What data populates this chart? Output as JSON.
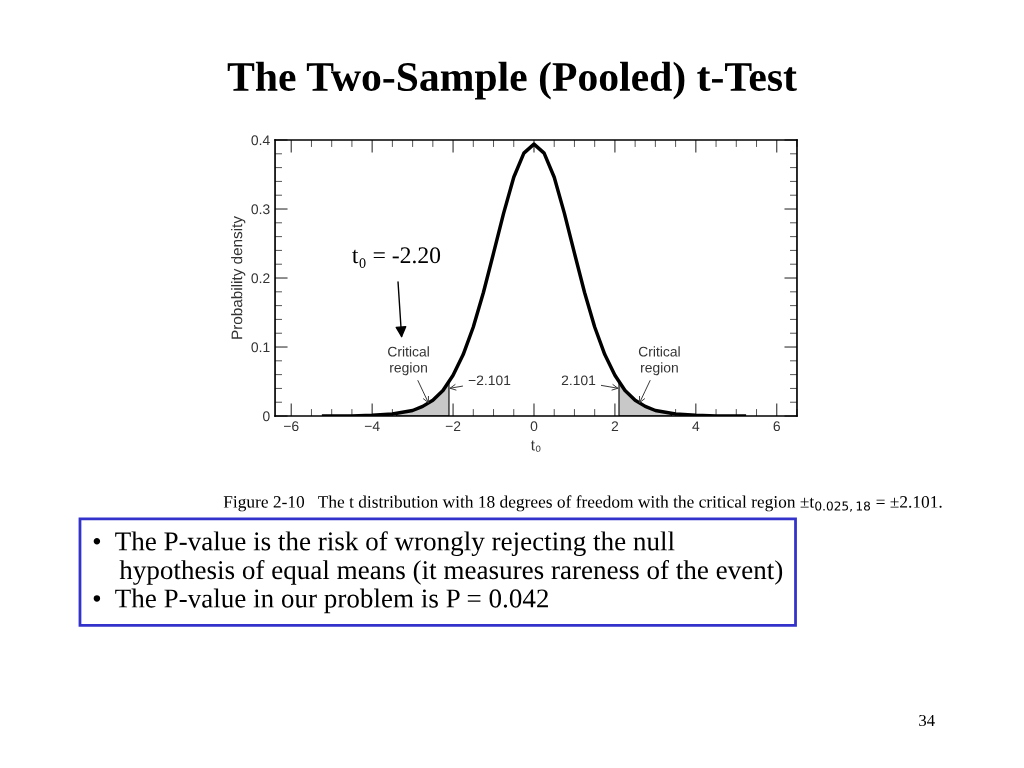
{
  "chart_data": {
    "type": "line",
    "title": "The Two-Sample (Pooled) t-Test",
    "xlabel": "t₀",
    "ylabel": "Probability density",
    "series": [
      {
        "type": "area",
        "color": "#c8c8c8",
        "x": [
          -3.4,
          -3.0,
          -2.75,
          -2.5,
          -2.25,
          -2.101
        ],
        "values": [
          0.003,
          0.008,
          0.014,
          0.023,
          0.037,
          0.049
        ]
      },
      {
        "type": "area",
        "color": "#c8c8c8",
        "x": [
          2.101,
          2.25,
          2.5,
          2.75,
          3.0,
          3.4
        ],
        "values": [
          0.049,
          0.037,
          0.023,
          0.014,
          0.008,
          0.003
        ]
      },
      {
        "color": "#000000",
        "x": [
          -5.2,
          -4.5,
          -4.0,
          -3.5,
          -3.0,
          -2.75,
          -2.5,
          -2.25,
          -2.0,
          -1.75,
          -1.5,
          -1.25,
          -1.0,
          -0.75,
          -0.5,
          -0.25,
          0.0,
          0.25,
          0.5,
          0.75,
          1.0,
          1.25,
          1.5,
          1.75,
          2.0,
          2.25,
          2.5,
          2.75,
          3.0,
          3.5,
          4.0,
          4.5,
          5.2
        ],
        "values": [
          0.0,
          0.0,
          0.001,
          0.003,
          0.008,
          0.014,
          0.023,
          0.037,
          0.059,
          0.089,
          0.129,
          0.179,
          0.236,
          0.294,
          0.346,
          0.381,
          0.394,
          0.381,
          0.346,
          0.294,
          0.236,
          0.179,
          0.129,
          0.089,
          0.059,
          0.037,
          0.023,
          0.014,
          0.008,
          0.003,
          0.001,
          0.0,
          0.0
        ]
      }
    ],
    "xlim": [
      -6.4,
      6.5
    ],
    "xticks": [
      {
        "value": -6,
        "label": "−6"
      },
      {
        "value": -4,
        "label": "−4"
      },
      {
        "value": -2,
        "label": "−2"
      },
      0,
      2,
      4,
      6
    ],
    "ylim": [
      0,
      0.4
    ],
    "yticks": [
      0,
      0.1,
      0.2,
      0.3,
      0.4
    ],
    "grid": false,
    "legend": false,
    "annotations": [
      "t₀ = -2.20",
      {
        "text": "Critical\nregion",
        "x": -2.6,
        "y": 0.018
      },
      {
        "text": "−2.101",
        "x": -2.101,
        "y": 0.04
      },
      {
        "text": "2.101",
        "x": 2.101,
        "y": 0.04
      },
      {
        "text": "Critical\nregion",
        "x": 2.6,
        "y": 0.018
      },
      "Figure 2-10   The t distribution with 18 degrees of freedom with the critical region ±t$_{0.025,18}$ = ±2.101.",
      "•  The P-value is the risk of wrongly rejecting the null\n    hypothesis of equal means (it measures rareness of the event)\n•  The P-value in our problem is P = 0.042",
      "34"
    ]
  }
}
